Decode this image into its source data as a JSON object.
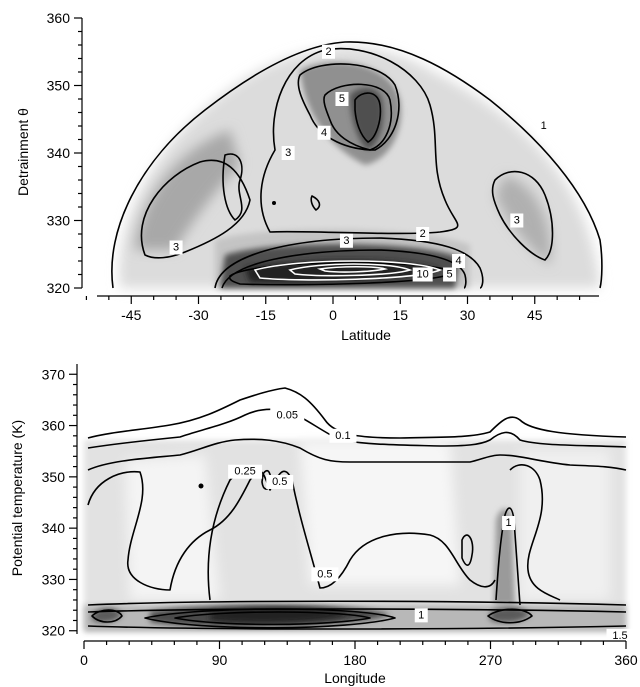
{
  "chart_data": [
    {
      "type": "contour",
      "xlabel": "Latitude",
      "ylabel": "Detrainment θ",
      "xlim": [
        -60,
        60
      ],
      "ylim": [
        320,
        360
      ],
      "xticks": [
        -45,
        -30,
        -15,
        0,
        15,
        30,
        45
      ],
      "yticks": [
        320,
        330,
        340,
        350,
        360
      ],
      "grid": false,
      "contour_labels": [
        {
          "text": "2",
          "x": -1,
          "y": 355
        },
        {
          "text": "1",
          "x": 47,
          "y": 344
        },
        {
          "text": "5",
          "x": 2,
          "y": 348
        },
        {
          "text": "4",
          "x": -2,
          "y": 343
        },
        {
          "text": "3",
          "x": -10,
          "y": 340
        },
        {
          "text": "3",
          "x": 41,
          "y": 330
        },
        {
          "text": "3",
          "x": -35,
          "y": 326
        },
        {
          "text": "3",
          "x": 3,
          "y": 327
        },
        {
          "text": "2",
          "x": 20,
          "y": 328
        },
        {
          "text": "4",
          "x": 28,
          "y": 324
        },
        {
          "text": "10",
          "x": 20,
          "y": 322
        },
        {
          "text": "5",
          "x": 26,
          "y": 322
        }
      ]
    },
    {
      "type": "contour",
      "xlabel": "Longitude",
      "ylabel": "Potential temperature (K)",
      "xlim": [
        0,
        360
      ],
      "ylim": [
        318,
        372
      ],
      "xticks": [
        0,
        90,
        180,
        270,
        360
      ],
      "yticks": [
        320,
        330,
        340,
        350,
        360,
        370
      ],
      "grid": false,
      "contour_labels": [
        {
          "text": "0.05",
          "x": 135,
          "y": 362
        },
        {
          "text": "0.1",
          "x": 172,
          "y": 358
        },
        {
          "text": "0.25",
          "x": 107,
          "y": 351
        },
        {
          "text": "0.5",
          "x": 130,
          "y": 349
        },
        {
          "text": "1",
          "x": 282,
          "y": 341
        },
        {
          "text": "0.5",
          "x": 160,
          "y": 331
        },
        {
          "text": "1",
          "x": 224,
          "y": 323
        },
        {
          "text": "1.5",
          "x": 370,
          "y": 319
        }
      ]
    }
  ]
}
